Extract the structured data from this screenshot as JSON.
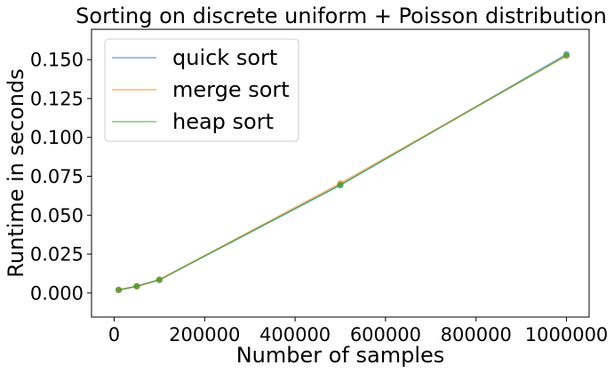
{
  "chart_data": {
    "type": "line",
    "title": "Sorting on discrete uniform + Poisson distribution",
    "xlabel": "Number of samples",
    "ylabel": "Runtime in seconds",
    "xlim": [
      -50000,
      1050000
    ],
    "ylim": [
      -0.0155,
      0.1695
    ],
    "x": [
      10000,
      50000,
      100000,
      500000,
      1000000
    ],
    "xticks": [
      0,
      200000,
      400000,
      600000,
      800000,
      1000000
    ],
    "xtick_labels": [
      "0",
      "200000",
      "400000",
      "600000",
      "800000",
      "1000000"
    ],
    "yticks": [
      0.0,
      0.025,
      0.05,
      0.075,
      0.1,
      0.125,
      0.15
    ],
    "ytick_labels": [
      "0.000",
      "0.025",
      "0.050",
      "0.075",
      "0.100",
      "0.125",
      "0.150"
    ],
    "legend_position": "top-left",
    "series": [
      {
        "name": "quick sort",
        "color": "#1f77b4",
        "values": [
          0.0019,
          0.0042,
          0.0084,
          0.0693,
          0.1535
        ]
      },
      {
        "name": "merge sort",
        "color": "#ff7f0e",
        "values": [
          0.0019,
          0.0043,
          0.0085,
          0.0705,
          0.1525
        ]
      },
      {
        "name": "heap sort",
        "color": "#2ca02c",
        "values": [
          0.002,
          0.0043,
          0.0085,
          0.0695,
          0.1527
        ]
      }
    ]
  }
}
